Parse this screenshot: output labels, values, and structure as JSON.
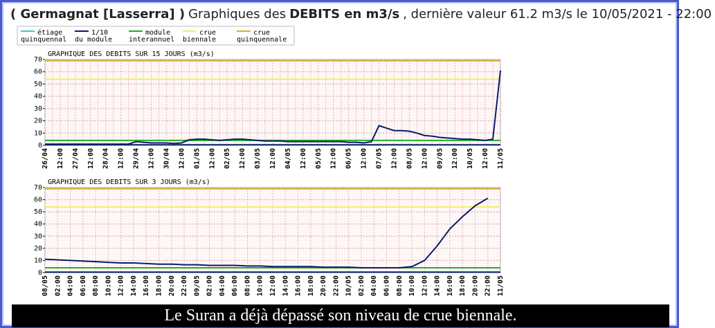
{
  "header": {
    "parts": [
      {
        "text": "( Germagnat [Lasserra] )",
        "bold": true
      },
      {
        "text": "Graphiques des",
        "bold": false
      },
      {
        "text": "DEBITS en m3/s",
        "bold": true
      },
      {
        "text": ", dernière valeur 61.2 m3/s le 10/05/2021 - 22:00",
        "bold": false
      }
    ]
  },
  "legend": [
    {
      "lines": [
        "étiage",
        "quinquennal"
      ],
      "color": "#40c8c8",
      "value": 0.3
    },
    {
      "lines": [
        "1/10",
        "du module"
      ],
      "color": "#0a1a6e",
      "value": 0.4
    },
    {
      "lines": [
        "module",
        "interannuel"
      ],
      "color": "#22b022",
      "value": 4
    },
    {
      "lines": [
        "crue",
        "biennale"
      ],
      "color": "#f0f060",
      "value": 54
    },
    {
      "lines": [
        "crue",
        "quinquennale"
      ],
      "color": "#d4b030",
      "value": 69
    }
  ],
  "chart_data": [
    {
      "type": "line",
      "title": "GRAPHIQUE DES DEBITS SUR 15 JOURS (m3/s)",
      "color": "#0a1a6e",
      "categories": [
        "26/04",
        null,
        "12:00",
        null,
        "27/04",
        null,
        "12:00",
        null,
        "28/04",
        null,
        "12:00",
        null,
        "29/04",
        null,
        "12:00",
        null,
        "30/04",
        null,
        "12:00",
        null,
        "01/05",
        null,
        "12:00",
        null,
        "02/05",
        null,
        "12:00",
        null,
        "03/05",
        null,
        "12:00",
        null,
        "04/05",
        null,
        "12:00",
        null,
        "05/05",
        null,
        "12:00",
        null,
        "06/05",
        null,
        "12:00",
        null,
        "07/05",
        null,
        "12:00",
        null,
        "08/05",
        null,
        "12:00",
        null,
        "09/05",
        null,
        "12:00",
        null,
        "10/05",
        null,
        "12:00",
        null,
        "11/05"
      ],
      "values": [
        1,
        1,
        1,
        1,
        1,
        1,
        1,
        1,
        1,
        1,
        1,
        1,
        3,
        2.5,
        2,
        2,
        2,
        1.5,
        2,
        4.5,
        5,
        5,
        4.5,
        4,
        4.5,
        5,
        5,
        4.5,
        4,
        3.5,
        3.5,
        3.5,
        3,
        3,
        3,
        3,
        3,
        3,
        3,
        3,
        2.5,
        2.5,
        2,
        3,
        16,
        14,
        12,
        12,
        11.5,
        10,
        8,
        7.5,
        6.5,
        6,
        5.5,
        5,
        5,
        4.5,
        4,
        5,
        61
      ],
      "ylim": [
        0,
        70
      ],
      "yticks": [
        0,
        10,
        20,
        30,
        40,
        50,
        60,
        70
      ]
    },
    {
      "type": "line",
      "title": "GRAPHIQUE DES DEBITS SUR 3 JOURS (m3/s)",
      "color": "#0a1a6e",
      "categories": [
        "08/05",
        "02:00",
        "04:00",
        "06:00",
        "08:00",
        "10:00",
        "12:00",
        "14:00",
        "16:00",
        "18:00",
        "20:00",
        "22:00",
        "09/05",
        "02:00",
        "04:00",
        "06:00",
        "08:00",
        "10:00",
        "12:00",
        "14:00",
        "16:00",
        "18:00",
        "20:00",
        "22:00",
        "10/05",
        "02:00",
        "04:00",
        "06:00",
        "08:00",
        "10:00",
        "12:00",
        "14:00",
        "16:00",
        "18:00",
        "20:00",
        "22:00",
        "11/05"
      ],
      "values": [
        11,
        10.5,
        10,
        9.5,
        9,
        8.5,
        8,
        8,
        7.5,
        7,
        7,
        6.5,
        6.5,
        6,
        6,
        6,
        5.5,
        5.5,
        5,
        5,
        5,
        5,
        4.5,
        4.5,
        4.5,
        4,
        4,
        4,
        4,
        5,
        10,
        22,
        36,
        46,
        55,
        61.2,
        null
      ],
      "ylim": [
        0,
        70
      ],
      "yticks": [
        0,
        10,
        20,
        30,
        40,
        50,
        60,
        70
      ]
    }
  ],
  "caption": "Le Suran a déjà dépassé son niveau de crue biennale."
}
